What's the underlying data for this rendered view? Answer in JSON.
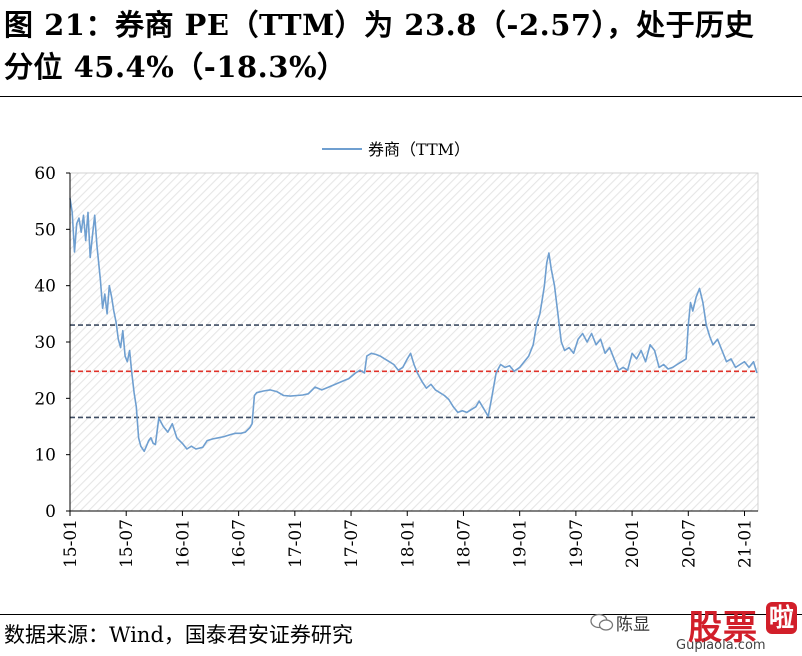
{
  "header": {
    "title_line1": "图 21：券商 PE（TTM）为 23.8（-2.57），处于历史",
    "title_line2": "分位 45.4%（-18.3%）"
  },
  "footer": {
    "source": "数据来源：Wind，国泰君安证券研究"
  },
  "watermark": {
    "author": "陈显",
    "brand_main": "股票",
    "brand_tail": "啦",
    "url": "Gupiaola.com"
  },
  "colors": {
    "series_line": "#6f9fd0",
    "median_line": "#e0332a",
    "band_line": "#3f4d63",
    "hatch": "#e9e9e9"
  },
  "chart_data": {
    "type": "line",
    "legend": {
      "position": "top-center",
      "entries": [
        "券商（TTM）"
      ]
    },
    "ylim": [
      0,
      60
    ],
    "yticks": [
      0,
      10,
      20,
      30,
      40,
      50,
      60
    ],
    "xticks": [
      "15-01",
      "15-07",
      "16-01",
      "16-07",
      "17-01",
      "17-07",
      "18-01",
      "18-07",
      "19-01",
      "19-07",
      "20-01",
      "20-07",
      "21-01"
    ],
    "x_range": [
      2015.0,
      2021.12
    ],
    "grid": false,
    "reference_lines": [
      {
        "value": 33.0,
        "style": "dashed",
        "color": "#3f4d63"
      },
      {
        "value": 24.8,
        "style": "dashed",
        "color": "#e0332a"
      },
      {
        "value": 16.6,
        "style": "dashed",
        "color": "#3f4d63"
      }
    ],
    "series": [
      {
        "name": "券商（TTM）",
        "color": "#6f9fd0",
        "points": [
          [
            2015.0,
            55.5
          ],
          [
            2015.02,
            53.0
          ],
          [
            2015.04,
            46.0
          ],
          [
            2015.06,
            51.0
          ],
          [
            2015.08,
            52.0
          ],
          [
            2015.1,
            49.5
          ],
          [
            2015.12,
            52.5
          ],
          [
            2015.14,
            48.0
          ],
          [
            2015.16,
            53.0
          ],
          [
            2015.18,
            45.0
          ],
          [
            2015.2,
            49.0
          ],
          [
            2015.22,
            52.5
          ],
          [
            2015.24,
            47.0
          ],
          [
            2015.27,
            41.0
          ],
          [
            2015.29,
            36.0
          ],
          [
            2015.31,
            38.5
          ],
          [
            2015.33,
            35.0
          ],
          [
            2015.35,
            40.0
          ],
          [
            2015.37,
            38.0
          ],
          [
            2015.39,
            35.5
          ],
          [
            2015.41,
            33.5
          ],
          [
            2015.43,
            30.5
          ],
          [
            2015.45,
            29.0
          ],
          [
            2015.47,
            32.0
          ],
          [
            2015.49,
            27.5
          ],
          [
            2015.51,
            26.5
          ],
          [
            2015.53,
            28.5
          ],
          [
            2015.55,
            24.5
          ],
          [
            2015.57,
            21.0
          ],
          [
            2015.59,
            18.5
          ],
          [
            2015.61,
            13.0
          ],
          [
            2015.63,
            11.5
          ],
          [
            2015.66,
            10.6
          ],
          [
            2015.68,
            11.5
          ],
          [
            2015.7,
            12.5
          ],
          [
            2015.72,
            13.0
          ],
          [
            2015.74,
            12.0
          ],
          [
            2015.76,
            11.8
          ],
          [
            2015.79,
            16.5
          ],
          [
            2015.83,
            15.0
          ],
          [
            2015.87,
            14.0
          ],
          [
            2015.91,
            15.5
          ],
          [
            2015.95,
            13.0
          ],
          [
            2016.0,
            12.0
          ],
          [
            2016.04,
            11.0
          ],
          [
            2016.08,
            11.5
          ],
          [
            2016.12,
            11.0
          ],
          [
            2016.18,
            11.3
          ],
          [
            2016.22,
            12.5
          ],
          [
            2016.27,
            12.8
          ],
          [
            2016.32,
            13.0
          ],
          [
            2016.37,
            13.2
          ],
          [
            2016.42,
            13.5
          ],
          [
            2016.47,
            13.8
          ],
          [
            2016.52,
            13.8
          ],
          [
            2016.56,
            14.0
          ],
          [
            2016.6,
            14.8
          ],
          [
            2016.62,
            15.5
          ],
          [
            2016.64,
            20.5
          ],
          [
            2016.66,
            21.0
          ],
          [
            2016.72,
            21.3
          ],
          [
            2016.78,
            21.5
          ],
          [
            2016.84,
            21.2
          ],
          [
            2016.9,
            20.5
          ],
          [
            2016.96,
            20.4
          ],
          [
            2017.02,
            20.5
          ],
          [
            2017.07,
            20.6
          ],
          [
            2017.12,
            20.8
          ],
          [
            2017.18,
            22.0
          ],
          [
            2017.24,
            21.5
          ],
          [
            2017.3,
            22.0
          ],
          [
            2017.36,
            22.5
          ],
          [
            2017.42,
            23.0
          ],
          [
            2017.48,
            23.5
          ],
          [
            2017.54,
            24.5
          ],
          [
            2017.58,
            25.0
          ],
          [
            2017.62,
            24.5
          ],
          [
            2017.64,
            27.5
          ],
          [
            2017.68,
            28.0
          ],
          [
            2017.72,
            27.8
          ],
          [
            2017.76,
            27.5
          ],
          [
            2017.8,
            27.0
          ],
          [
            2017.84,
            26.5
          ],
          [
            2017.88,
            26.0
          ],
          [
            2017.92,
            25.0
          ],
          [
            2017.96,
            25.5
          ],
          [
            2018.0,
            27.0
          ],
          [
            2018.03,
            28.0
          ],
          [
            2018.06,
            26.0
          ],
          [
            2018.09,
            24.5
          ],
          [
            2018.13,
            23.0
          ],
          [
            2018.17,
            21.8
          ],
          [
            2018.21,
            22.5
          ],
          [
            2018.25,
            21.5
          ],
          [
            2018.29,
            21.0
          ],
          [
            2018.33,
            20.5
          ],
          [
            2018.37,
            19.8
          ],
          [
            2018.41,
            18.5
          ],
          [
            2018.45,
            17.5
          ],
          [
            2018.49,
            17.8
          ],
          [
            2018.53,
            17.5
          ],
          [
            2018.57,
            18.0
          ],
          [
            2018.61,
            18.5
          ],
          [
            2018.64,
            19.5
          ],
          [
            2018.67,
            18.5
          ],
          [
            2018.7,
            17.5
          ],
          [
            2018.72,
            16.8
          ],
          [
            2018.75,
            20.0
          ],
          [
            2018.79,
            24.5
          ],
          [
            2018.83,
            26.0
          ],
          [
            2018.87,
            25.5
          ],
          [
            2018.91,
            25.8
          ],
          [
            2018.95,
            24.8
          ],
          [
            2019.0,
            25.5
          ],
          [
            2019.04,
            26.5
          ],
          [
            2019.08,
            27.5
          ],
          [
            2019.12,
            29.5
          ],
          [
            2019.15,
            33.0
          ],
          [
            2019.18,
            35.0
          ],
          [
            2019.2,
            37.5
          ],
          [
            2019.22,
            40.0
          ],
          [
            2019.24,
            44.0
          ],
          [
            2019.26,
            45.8
          ],
          [
            2019.28,
            43.0
          ],
          [
            2019.31,
            40.0
          ],
          [
            2019.34,
            35.0
          ],
          [
            2019.37,
            30.0
          ],
          [
            2019.4,
            28.5
          ],
          [
            2019.44,
            29.0
          ],
          [
            2019.48,
            28.0
          ],
          [
            2019.52,
            30.5
          ],
          [
            2019.56,
            31.5
          ],
          [
            2019.6,
            30.0
          ],
          [
            2019.64,
            31.5
          ],
          [
            2019.68,
            29.5
          ],
          [
            2019.72,
            30.5
          ],
          [
            2019.76,
            28.0
          ],
          [
            2019.8,
            29.0
          ],
          [
            2019.84,
            27.0
          ],
          [
            2019.88,
            25.0
          ],
          [
            2019.92,
            25.5
          ],
          [
            2019.96,
            25.0
          ],
          [
            2020.0,
            28.0
          ],
          [
            2020.04,
            27.0
          ],
          [
            2020.08,
            28.5
          ],
          [
            2020.12,
            26.5
          ],
          [
            2020.16,
            29.5
          ],
          [
            2020.2,
            28.5
          ],
          [
            2020.24,
            25.5
          ],
          [
            2020.28,
            26.0
          ],
          [
            2020.32,
            25.2
          ],
          [
            2020.36,
            25.5
          ],
          [
            2020.4,
            26.0
          ],
          [
            2020.44,
            26.5
          ],
          [
            2020.48,
            27.0
          ],
          [
            2020.5,
            33.0
          ],
          [
            2020.52,
            37.0
          ],
          [
            2020.54,
            35.5
          ],
          [
            2020.57,
            38.0
          ],
          [
            2020.6,
            39.5
          ],
          [
            2020.63,
            37.0
          ],
          [
            2020.66,
            33.0
          ],
          [
            2020.69,
            31.0
          ],
          [
            2020.72,
            29.5
          ],
          [
            2020.76,
            30.5
          ],
          [
            2020.8,
            28.5
          ],
          [
            2020.84,
            26.5
          ],
          [
            2020.88,
            27.0
          ],
          [
            2020.92,
            25.5
          ],
          [
            2020.96,
            26.0
          ],
          [
            2021.0,
            26.5
          ],
          [
            2021.04,
            25.5
          ],
          [
            2021.08,
            26.5
          ],
          [
            2021.11,
            24.5
          ]
        ]
      }
    ]
  }
}
